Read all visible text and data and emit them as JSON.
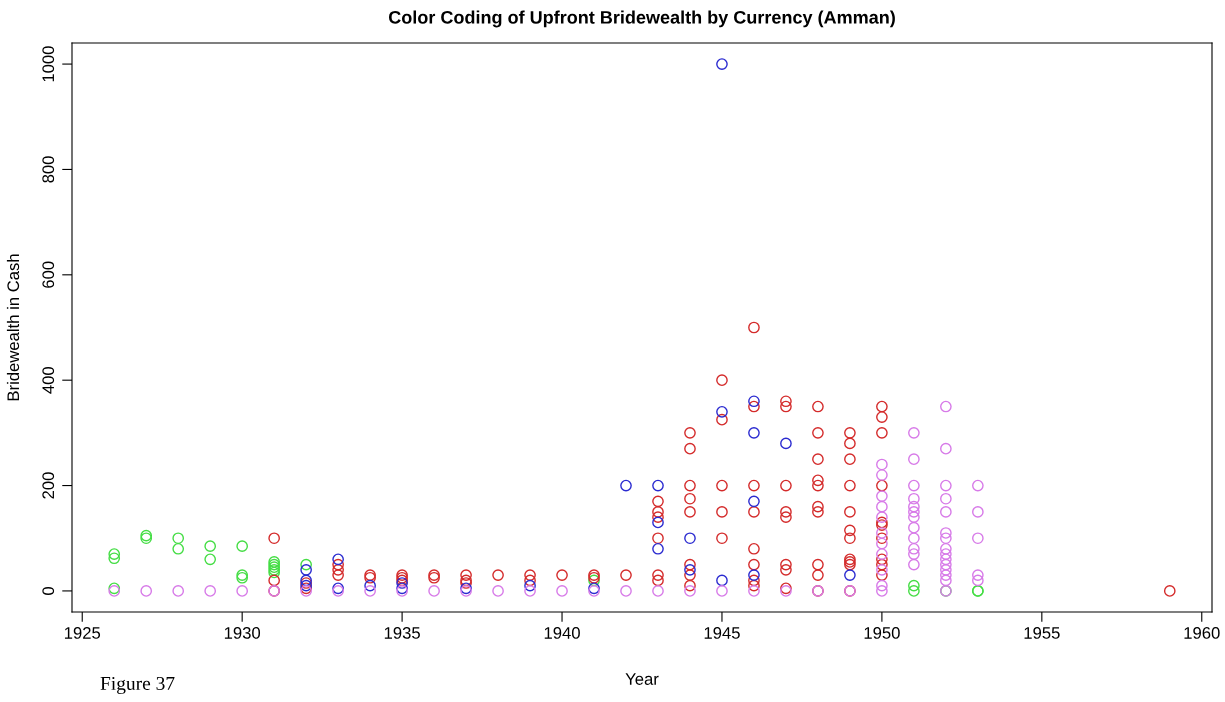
{
  "chart_data": {
    "type": "scatter",
    "title": "Color Coding of Upfront Bridewealth by Currency (Amman)",
    "xlabel": "Year",
    "ylabel": "Bridewealth in Cash",
    "annotations": [
      "Figure 37"
    ],
    "xlim": [
      1924.68,
      1960.32
    ],
    "xticks": [
      1925,
      1930,
      1935,
      1940,
      1945,
      1950,
      1955,
      1960
    ],
    "ylim": [
      -40,
      1040
    ],
    "yticks": [
      0,
      200,
      400,
      600,
      800,
      1000
    ],
    "grid": false,
    "legend": false,
    "marker": "circle",
    "series": [
      {
        "color": "#44dd44",
        "x": [
          1926,
          1926,
          1926,
          1927,
          1927,
          1928,
          1928,
          1929,
          1929,
          1930,
          1930,
          1930,
          1931,
          1931,
          1931,
          1931,
          1931,
          1932,
          1941,
          1951,
          1951,
          1952,
          1953,
          1953
        ],
        "values": [
          70,
          62,
          5,
          105,
          100,
          100,
          80,
          85,
          60,
          85,
          30,
          25,
          55,
          50,
          45,
          40,
          35,
          50,
          20,
          10,
          0,
          0,
          0,
          0
        ]
      },
      {
        "color": "#d42a2a",
        "x": [
          1931,
          1931,
          1931,
          1932,
          1932,
          1933,
          1933,
          1933,
          1934,
          1934,
          1935,
          1935,
          1935,
          1936,
          1936,
          1937,
          1937,
          1937,
          1938,
          1939,
          1939,
          1940,
          1941,
          1941,
          1942,
          1943,
          1943,
          1943,
          1943,
          1943,
          1943,
          1944,
          1944,
          1944,
          1944,
          1944,
          1944,
          1944,
          1944,
          1945,
          1945,
          1945,
          1945,
          1945,
          1946,
          1946,
          1946,
          1946,
          1946,
          1946,
          1946,
          1946,
          1947,
          1947,
          1947,
          1947,
          1947,
          1947,
          1947,
          1947,
          1948,
          1948,
          1948,
          1948,
          1948,
          1948,
          1948,
          1948,
          1948,
          1948,
          1949,
          1949,
          1949,
          1949,
          1949,
          1949,
          1949,
          1949,
          1949,
          1949,
          1949,
          1950,
          1950,
          1950,
          1950,
          1950,
          1950,
          1950,
          1950,
          1950,
          1950,
          1959
        ],
        "values": [
          100,
          20,
          0,
          15,
          5,
          50,
          40,
          30,
          30,
          25,
          30,
          25,
          20,
          30,
          25,
          30,
          20,
          15,
          30,
          30,
          20,
          30,
          30,
          25,
          30,
          170,
          150,
          140,
          100,
          30,
          20,
          300,
          270,
          200,
          175,
          150,
          50,
          30,
          10,
          400,
          325,
          200,
          150,
          100,
          500,
          350,
          200,
          150,
          80,
          50,
          20,
          10,
          360,
          350,
          200,
          150,
          140,
          50,
          40,
          5,
          350,
          300,
          250,
          210,
          200,
          160,
          150,
          50,
          30,
          0,
          300,
          280,
          250,
          200,
          150,
          115,
          100,
          60,
          55,
          50,
          0,
          350,
          330,
          300,
          200,
          130,
          125,
          100,
          60,
          50,
          30,
          0
        ]
      },
      {
        "color": "#2a2ad0",
        "x": [
          1932,
          1932,
          1932,
          1933,
          1933,
          1934,
          1935,
          1935,
          1937,
          1939,
          1941,
          1942,
          1943,
          1943,
          1943,
          1944,
          1944,
          1945,
          1945,
          1945,
          1946,
          1946,
          1946,
          1946,
          1947,
          1949
        ],
        "values": [
          40,
          20,
          10,
          60,
          5,
          10,
          15,
          5,
          5,
          10,
          5,
          200,
          200,
          130,
          80,
          100,
          40,
          1000,
          340,
          20,
          360,
          300,
          170,
          30,
          280,
          30
        ]
      },
      {
        "color": "#d77ae8",
        "x": [
          1926,
          1927,
          1928,
          1929,
          1930,
          1931,
          1932,
          1933,
          1934,
          1935,
          1936,
          1937,
          1938,
          1939,
          1940,
          1941,
          1942,
          1943,
          1944,
          1945,
          1946,
          1947,
          1948,
          1949,
          1950,
          1950,
          1950,
          1950,
          1950,
          1950,
          1950,
          1950,
          1950,
          1950,
          1950,
          1951,
          1951,
          1951,
          1951,
          1951,
          1951,
          1951,
          1951,
          1951,
          1951,
          1951,
          1951,
          1952,
          1952,
          1952,
          1952,
          1952,
          1952,
          1952,
          1952,
          1952,
          1952,
          1952,
          1952,
          1952,
          1952,
          1952,
          1953,
          1953,
          1953,
          1953,
          1953
        ],
        "values": [
          0,
          0,
          0,
          0,
          0,
          0,
          0,
          0,
          0,
          0,
          0,
          0,
          0,
          0,
          0,
          0,
          0,
          0,
          0,
          0,
          0,
          0,
          0,
          0,
          240,
          220,
          180,
          160,
          140,
          110,
          90,
          70,
          40,
          10,
          0,
          300,
          250,
          200,
          175,
          160,
          150,
          140,
          120,
          100,
          80,
          70,
          50,
          350,
          270,
          200,
          175,
          150,
          110,
          100,
          80,
          70,
          60,
          50,
          40,
          30,
          20,
          0,
          200,
          150,
          100,
          30,
          20
        ]
      }
    ]
  }
}
